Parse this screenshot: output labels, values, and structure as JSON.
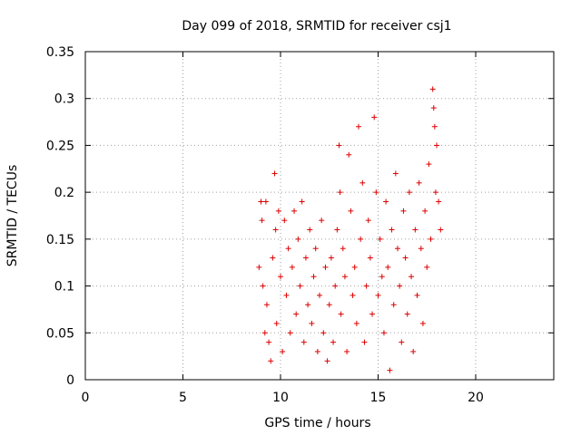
{
  "chart_data": {
    "type": "scatter",
    "title": "Day 099 of 2018, SRMTID for receiver csj1",
    "xlabel": "GPS time / hours",
    "ylabel": "SRMTID / TECUs",
    "xlim": [
      0,
      24
    ],
    "ylim": [
      0,
      0.35
    ],
    "x_ticks": [
      0,
      5,
      10,
      15,
      20
    ],
    "x_tick_labels": [
      "0",
      "5",
      "10",
      "15",
      "20"
    ],
    "y_ticks": [
      0,
      0.05,
      0.1,
      0.15,
      0.2,
      0.25,
      0.3,
      0.35
    ],
    "y_tick_labels": [
      "0",
      "0.05",
      "0.1",
      "0.15",
      "0.2",
      "0.25",
      "0.3",
      "0.35"
    ],
    "grid": true,
    "marker": "+",
    "color": "#dd0000",
    "x_range_observed": [
      8.8,
      18.3
    ],
    "series": [
      {
        "name": "SRMTID",
        "points": [
          [
            8.9,
            0.12
          ],
          [
            9.0,
            0.19
          ],
          [
            9.05,
            0.17
          ],
          [
            9.1,
            0.1
          ],
          [
            9.2,
            0.05
          ],
          [
            9.25,
            0.19
          ],
          [
            9.3,
            0.08
          ],
          [
            9.4,
            0.04
          ],
          [
            9.5,
            0.02
          ],
          [
            9.6,
            0.13
          ],
          [
            9.7,
            0.22
          ],
          [
            9.75,
            0.16
          ],
          [
            9.8,
            0.06
          ],
          [
            9.9,
            0.18
          ],
          [
            10.0,
            0.11
          ],
          [
            10.1,
            0.03
          ],
          [
            10.2,
            0.17
          ],
          [
            10.3,
            0.09
          ],
          [
            10.4,
            0.14
          ],
          [
            10.5,
            0.05
          ],
          [
            10.6,
            0.12
          ],
          [
            10.7,
            0.18
          ],
          [
            10.8,
            0.07
          ],
          [
            10.9,
            0.15
          ],
          [
            11.0,
            0.1
          ],
          [
            11.1,
            0.19
          ],
          [
            11.2,
            0.04
          ],
          [
            11.3,
            0.13
          ],
          [
            11.4,
            0.08
          ],
          [
            11.5,
            0.16
          ],
          [
            11.6,
            0.06
          ],
          [
            11.7,
            0.11
          ],
          [
            11.8,
            0.14
          ],
          [
            11.9,
            0.03
          ],
          [
            12.0,
            0.09
          ],
          [
            12.1,
            0.17
          ],
          [
            12.2,
            0.05
          ],
          [
            12.3,
            0.12
          ],
          [
            12.4,
            0.02
          ],
          [
            12.5,
            0.08
          ],
          [
            12.6,
            0.13
          ],
          [
            12.7,
            0.04
          ],
          [
            12.8,
            0.1
          ],
          [
            12.9,
            0.16
          ],
          [
            13.0,
            0.25
          ],
          [
            13.05,
            0.2
          ],
          [
            13.1,
            0.07
          ],
          [
            13.2,
            0.14
          ],
          [
            13.3,
            0.11
          ],
          [
            13.4,
            0.03
          ],
          [
            13.5,
            0.24
          ],
          [
            13.6,
            0.18
          ],
          [
            13.7,
            0.09
          ],
          [
            13.8,
            0.12
          ],
          [
            13.9,
            0.06
          ],
          [
            14.0,
            0.27
          ],
          [
            14.1,
            0.15
          ],
          [
            14.2,
            0.21
          ],
          [
            14.3,
            0.04
          ],
          [
            14.4,
            0.1
          ],
          [
            14.5,
            0.17
          ],
          [
            14.6,
            0.13
          ],
          [
            14.7,
            0.07
          ],
          [
            14.8,
            0.28
          ],
          [
            14.9,
            0.2
          ],
          [
            15.0,
            0.09
          ],
          [
            15.1,
            0.15
          ],
          [
            15.2,
            0.11
          ],
          [
            15.3,
            0.05
          ],
          [
            15.4,
            0.19
          ],
          [
            15.5,
            0.12
          ],
          [
            15.6,
            0.01
          ],
          [
            15.7,
            0.16
          ],
          [
            15.8,
            0.08
          ],
          [
            15.9,
            0.22
          ],
          [
            16.0,
            0.14
          ],
          [
            16.1,
            0.1
          ],
          [
            16.2,
            0.04
          ],
          [
            16.3,
            0.18
          ],
          [
            16.4,
            0.13
          ],
          [
            16.5,
            0.07
          ],
          [
            16.6,
            0.2
          ],
          [
            16.7,
            0.11
          ],
          [
            16.8,
            0.03
          ],
          [
            16.9,
            0.16
          ],
          [
            17.0,
            0.09
          ],
          [
            17.1,
            0.21
          ],
          [
            17.2,
            0.14
          ],
          [
            17.3,
            0.06
          ],
          [
            17.4,
            0.18
          ],
          [
            17.5,
            0.12
          ],
          [
            17.6,
            0.23
          ],
          [
            17.7,
            0.15
          ],
          [
            17.8,
            0.31
          ],
          [
            17.85,
            0.29
          ],
          [
            17.9,
            0.27
          ],
          [
            17.95,
            0.2
          ],
          [
            18.0,
            0.25
          ],
          [
            18.1,
            0.19
          ],
          [
            18.2,
            0.16
          ]
        ]
      }
    ]
  }
}
